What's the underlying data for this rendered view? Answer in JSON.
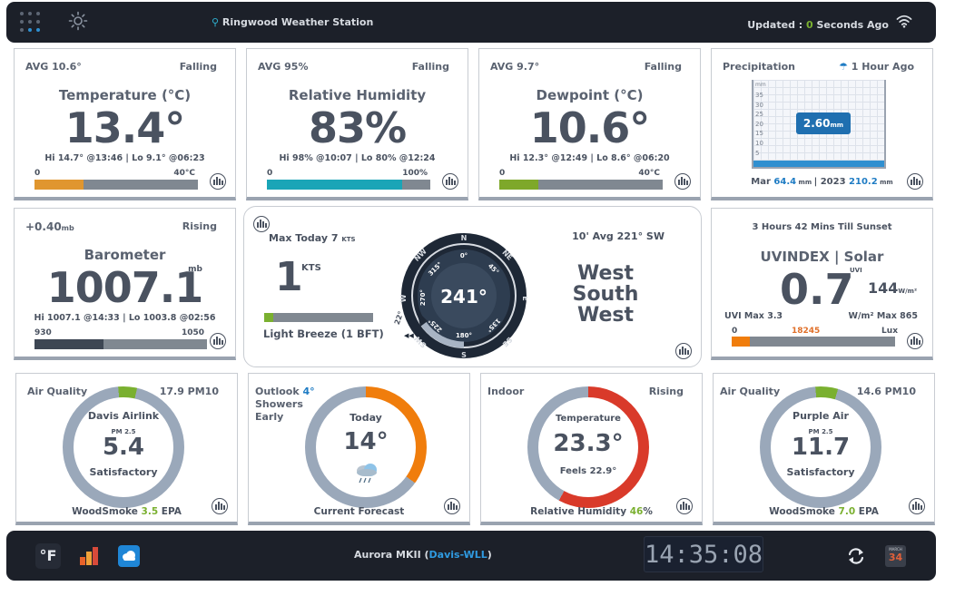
{
  "header": {
    "station": "Ringwood Weather Station",
    "updated_prefix": "Updated : ",
    "updated_value": "0",
    "updated_suffix": " Seconds Ago"
  },
  "temperature": {
    "avg": "AVG 10.6°",
    "trend": "Falling",
    "title": "Temperature (°C)",
    "value": "13.4°",
    "hilo": "Hi 14.7° @13:46 | Lo 9.1° @06:23",
    "min": "0",
    "max": "40°C",
    "fill": 0.3,
    "color": "#e0962f"
  },
  "humidity": {
    "avg": "AVG 95%",
    "trend": "Falling",
    "title": "Relative Humidity",
    "value": "83%",
    "hilo": "Hi 98% @10:07 | Lo 80% @12:24",
    "min": "0",
    "max": "100%",
    "fill": 0.83,
    "color": "#1aa5b7"
  },
  "dewpoint": {
    "avg": "AVG 9.7°",
    "trend": "Falling",
    "title": "Dewpoint (°C)",
    "value": "10.6°",
    "hilo": "Hi 12.3° @12:49 | Lo 8.6° @06:20",
    "min": "0",
    "max": "40°C",
    "fill": 0.24,
    "color": "#7ea82a"
  },
  "precipitation": {
    "title": "Precipitation",
    "last": "1 Hour Ago",
    "value": "2.60",
    "unit": "mm",
    "axis_unit": "mm",
    "ticks": [
      "35",
      "30",
      "25",
      "20",
      "15",
      "10",
      "5"
    ],
    "month_label": "Mar",
    "month_value": "64.4",
    "year_label": "2023",
    "year_value": "210.2"
  },
  "barometer": {
    "change": "+0.40",
    "change_unit": "mb",
    "trend": "Rising",
    "title": "Barometer",
    "value": "1007.1",
    "unit": "mb",
    "hilo": "Hi 1007.1 @14:33 | Lo 1003.8 @02:56",
    "min": "930",
    "max": "1050",
    "fill": 0.4,
    "color": "#3d4653"
  },
  "wind": {
    "max_today": "Max Today 7",
    "max_unit": "KTS",
    "speed": "1",
    "speed_unit": "KTS",
    "beaufort": "Light Breeze (1 BFT)",
    "fill": 0.08,
    "avg10": "10' Avg 221° SW",
    "direction_deg": "241°",
    "direction_text": [
      "West",
      "South",
      "West"
    ],
    "compass": [
      "N",
      "NE",
      "E",
      "SE",
      "S",
      "SW",
      "W",
      "NW"
    ],
    "degrees": [
      "0°",
      "45°",
      "135°",
      "180°",
      "225°",
      "270°",
      "315°"
    ],
    "pointer_label": "22°"
  },
  "uv": {
    "sunset": "3 Hours 42 Mins Till Sunset",
    "title": "UVINDEX | Solar",
    "value": "0.7",
    "uvi_unit": "UVI",
    "solar": "144",
    "solar_unit": "W/m²",
    "uvi_max": "UVI Max 3.3",
    "solar_max": "W/m² Max 865",
    "lux_min": "0",
    "lux_value": "18245",
    "lux_label": "Lux",
    "fill": 0.11
  },
  "airlink": {
    "title": "Air Quality",
    "pm10": "17.9 PM10",
    "device": "Davis Airlink",
    "pm_label": "PM 2.5",
    "value": "5.4",
    "status": "Satisfactory",
    "woodsmoke_label": "WoodSmoke",
    "woodsmoke_value": "3.5",
    "woodsmoke_unit": "EPA",
    "fill": 0.05
  },
  "forecast": {
    "outlook_label": "Outlook",
    "outlook_value": "4°",
    "line2": "Showers",
    "line3": "Early",
    "day": "Today",
    "value": "14°",
    "footer": "Current Forecast",
    "fill": 0.35
  },
  "indoor": {
    "title": "Indoor",
    "trend": "Rising",
    "label": "Temperature",
    "value": "23.3°",
    "feels": "Feels 22.9°",
    "rh_label": "Relative Humidity",
    "rh_value": "46",
    "rh_unit": "%",
    "fill": 0.58
  },
  "purpleair": {
    "title": "Air Quality",
    "pm10": "14.6 PM10",
    "device": "Purple Air",
    "pm_label": "PM 2.5",
    "value": "11.7",
    "status": "Satisfactory",
    "woodsmoke_label": "WoodSmoke",
    "woodsmoke_value": "7.0",
    "woodsmoke_unit": "EPA",
    "fill": 0.06
  },
  "footer": {
    "unit_toggle": "°F",
    "device_prefix": "Aurora MKII (",
    "device_link": "Davis-WLL",
    "device_suffix": ")",
    "clock": "14:35:08",
    "calendar_month": "MARCH",
    "calendar_day": "34"
  }
}
